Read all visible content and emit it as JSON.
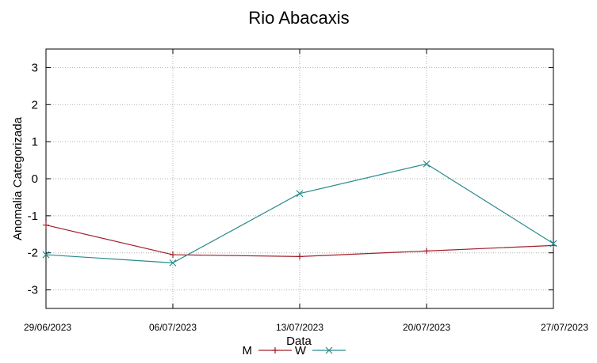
{
  "chart_data": {
    "type": "line",
    "title": "Rio Abacaxis",
    "xlabel": "Data",
    "ylabel": "Anomalia Categorizada",
    "x": [
      "29/06/2023",
      "06/07/2023",
      "13/07/2023",
      "20/07/2023",
      "27/07/2023"
    ],
    "ylim": [
      -3.5,
      3.5
    ],
    "yticks": [
      -3,
      -2,
      -1,
      0,
      1,
      2,
      3
    ],
    "grid": true,
    "legend": "bottom-center",
    "series": [
      {
        "name": "M",
        "color": "#a0202a",
        "marker": "plus",
        "values": [
          -1.25,
          -2.05,
          -2.1,
          -1.95,
          -1.8
        ]
      },
      {
        "name": "W",
        "color": "#2a8a8a",
        "marker": "cross",
        "values": [
          -2.05,
          -2.27,
          -0.4,
          0.4,
          -1.75
        ]
      }
    ]
  }
}
